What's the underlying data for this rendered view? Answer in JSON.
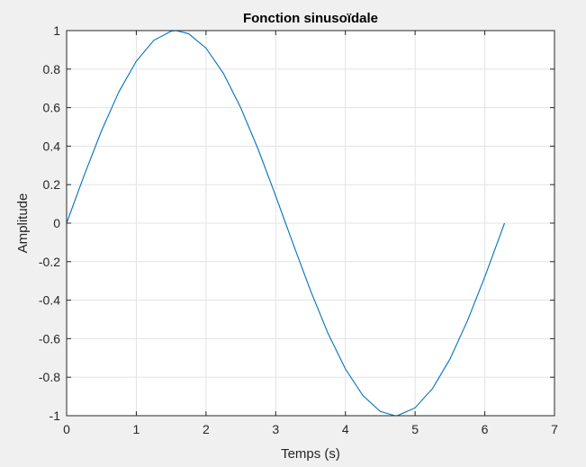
{
  "chart_data": {
    "type": "line",
    "title": "Fonction sinusoïdale",
    "xlabel": "Temps (s)",
    "ylabel": "Amplitude",
    "xlim": [
      0,
      7
    ],
    "ylim": [
      -1,
      1
    ],
    "xticks": [
      "0",
      "1",
      "2",
      "3",
      "4",
      "5",
      "6",
      "7"
    ],
    "yticks": [
      "-1",
      "-0.8",
      "-0.6",
      "-0.4",
      "-0.2",
      "0",
      "0.2",
      "0.4",
      "0.6",
      "0.8",
      "1"
    ],
    "grid": true,
    "legend": "none",
    "series": [
      {
        "color": "#0072bd",
        "x": [
          0,
          0.25,
          0.5,
          0.75,
          1,
          1.25,
          1.5,
          1.5708,
          1.75,
          2,
          2.25,
          2.5,
          2.75,
          3,
          3.1416,
          3.25,
          3.5,
          3.75,
          4,
          4.25,
          4.5,
          4.7124,
          4.75,
          5,
          5.25,
          5.5,
          5.75,
          6,
          6.25,
          6.2832
        ],
        "y": [
          0,
          0.247,
          0.479,
          0.682,
          0.841,
          0.949,
          0.997,
          1,
          0.984,
          0.909,
          0.778,
          0.598,
          0.382,
          0.141,
          0,
          -0.108,
          -0.351,
          -0.572,
          -0.757,
          -0.895,
          -0.978,
          -1,
          -0.999,
          -0.959,
          -0.859,
          -0.706,
          -0.508,
          -0.279,
          -0.033,
          0
        ]
      }
    ]
  }
}
